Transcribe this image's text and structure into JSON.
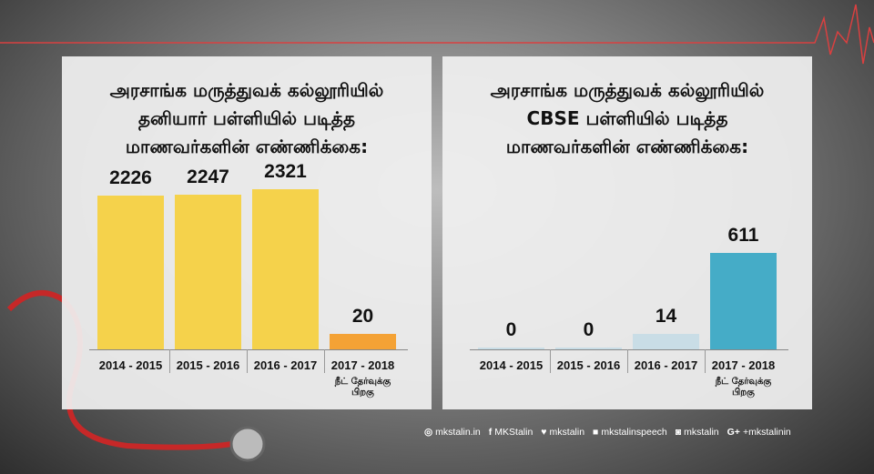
{
  "colors": {
    "yellow": "#f5d24b",
    "orange": "#f4a235",
    "blue": "#45acc7",
    "lightblue": "#c9dde6"
  },
  "chart_data": [
    {
      "type": "bar",
      "title": [
        "அரசாங்க மருத்துவக் கல்லூரியில்",
        "தனியார் பள்ளியில் படித்த",
        "மாணவர்களின் எண்ணிக்கை:"
      ],
      "categories": [
        "2014 - 2015",
        "2015 - 2016",
        "2016 - 2017",
        "2017 - 2018"
      ],
      "values": [
        2226,
        2247,
        2321,
        20
      ],
      "bar_colors": [
        "yellow",
        "yellow",
        "yellow",
        "orange"
      ],
      "note": "நீட் தேர்வுக்கு பிறகு",
      "ylim": [
        0,
        2321
      ]
    },
    {
      "type": "bar",
      "title": [
        "அரசாங்க மருத்துவக் கல்லூரியில்",
        "CBSE பள்ளியில் படித்த",
        "மாணவர்களின் எண்ணிக்கை:"
      ],
      "categories": [
        "2014 - 2015",
        "2015 - 2016",
        "2016 - 2017",
        "2017 - 2018"
      ],
      "values": [
        0,
        0,
        14,
        611
      ],
      "bar_colors": [
        "lightblue",
        "lightblue",
        "lightblue",
        "blue"
      ],
      "note": "நீட் தேர்வுக்கு பிறகு",
      "ylim": [
        0,
        611
      ]
    }
  ],
  "footer": [
    {
      "icon": "globe-icon",
      "glyph": "◎",
      "text": "mkstalin.in"
    },
    {
      "icon": "facebook-icon",
      "glyph": "f",
      "text": "MKStalin"
    },
    {
      "icon": "twitter-icon",
      "glyph": "♥",
      "text": "mkstalin"
    },
    {
      "icon": "youtube-icon",
      "glyph": "■",
      "text": "mkstalinspeech"
    },
    {
      "icon": "instagram-icon",
      "glyph": "◙",
      "text": "mkstalin"
    },
    {
      "icon": "google-plus-icon",
      "glyph": "G+",
      "text": "+mkstalinin"
    }
  ]
}
